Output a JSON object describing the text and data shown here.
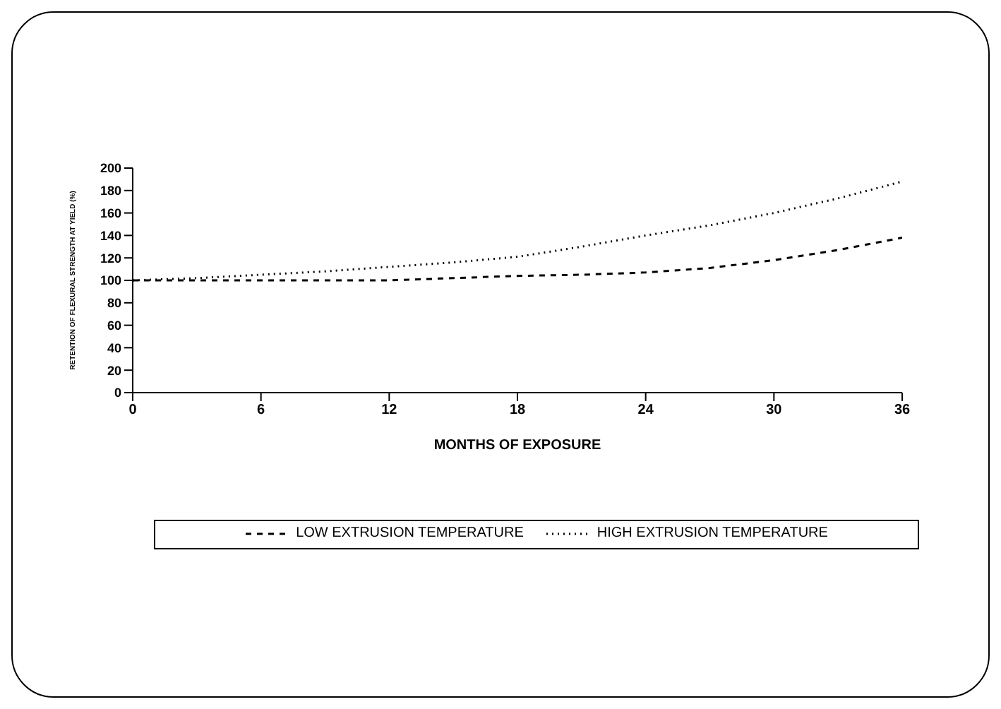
{
  "chart_data": {
    "type": "line",
    "xlabel": "MONTHS OF EXPOSURE",
    "ylabel": "RETENTION OF FLEXURAL STRENGTH AT YIELD (%)",
    "x": [
      0,
      3,
      6,
      9,
      12,
      15,
      18,
      21,
      24,
      27,
      30,
      33,
      36
    ],
    "series": [
      {
        "name": "LOW EXTRUSION TEMPERATURE",
        "color": "#000000",
        "line_style": "dashed",
        "values": [
          100,
          100,
          100,
          100,
          100,
          102,
          104,
          105,
          107,
          111,
          118,
          127,
          138
        ]
      },
      {
        "name": "HIGH EXTRUSION TEMPERATURE",
        "color": "#000000",
        "line_style": "dotted",
        "values": [
          100,
          102,
          105,
          108,
          112,
          116,
          121,
          130,
          140,
          149,
          160,
          173,
          188
        ]
      }
    ],
    "xlim": [
      0,
      36
    ],
    "xticks": [
      0,
      6,
      12,
      18,
      24,
      30,
      36
    ],
    "ylim": [
      0,
      200
    ],
    "yticks": [
      0,
      20,
      40,
      60,
      80,
      100,
      120,
      140,
      160,
      180,
      200
    ],
    "grid": false,
    "legend": "bottom",
    "marker": "none"
  }
}
